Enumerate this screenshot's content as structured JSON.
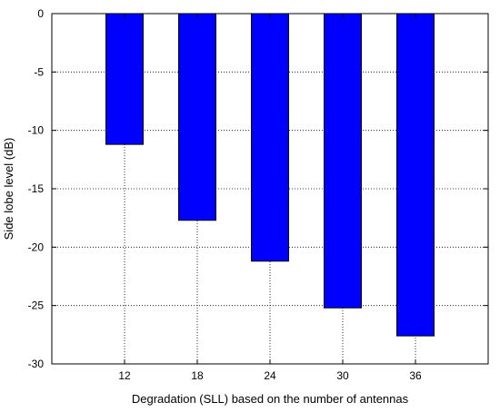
{
  "chart_data": {
    "type": "bar",
    "categories": [
      "12",
      "18",
      "24",
      "30",
      "36"
    ],
    "values": [
      -11.2,
      -17.7,
      -21.2,
      -25.2,
      -27.6
    ],
    "xlabel": "Degradation (SLL) based on the number of antennas",
    "ylabel": "Side lobe level (dB)",
    "ylim": [
      -30,
      0
    ],
    "yticks": [
      "0",
      "-5",
      "-10",
      "-15",
      "-20",
      "-25",
      "-30"
    ],
    "ytick_values": [
      0,
      -5,
      -10,
      -15,
      -20,
      -25,
      -30
    ],
    "grid": true,
    "bar_color": "#0000ff",
    "bar_edge_color": "#000000"
  }
}
